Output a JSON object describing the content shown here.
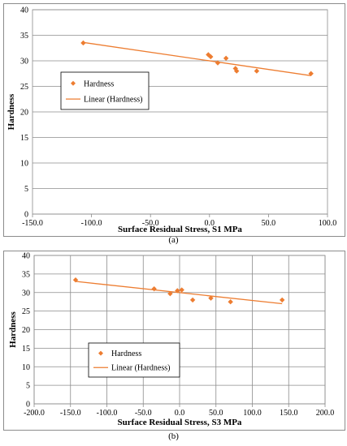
{
  "captions": {
    "a": "(a)",
    "b": "(b)"
  },
  "colors": {
    "series": "#ed7d31",
    "grid": "#8c8c8c",
    "axis": "#8c8c8c"
  },
  "chart_data": [
    {
      "type": "scatter",
      "xlabel": "Surface Residual Stress, S1 MPa",
      "ylabel": "Hardness",
      "xlim": [
        -150,
        100
      ],
      "ylim": [
        0,
        40
      ],
      "xticks": [
        -150,
        -100,
        -50,
        0,
        50,
        100
      ],
      "yticks": [
        0,
        5,
        10,
        15,
        20,
        25,
        30,
        35,
        40
      ],
      "xtick_labels": [
        "-150.0",
        "-100.0",
        "-50.0",
        "0.0",
        "50.0",
        "100.0"
      ],
      "ytick_labels": [
        "0",
        "5",
        "10",
        "15",
        "20",
        "25",
        "30",
        "35",
        "40"
      ],
      "grid": "horizontal",
      "legend_position": "left",
      "legend": [
        "Hardness",
        "Linear (Hardness)"
      ],
      "series": [
        {
          "name": "Hardness",
          "marker": "diamond",
          "x": [
            -107,
            -1,
            1,
            7,
            14,
            22,
            23,
            40,
            86
          ],
          "y": [
            33.5,
            31.2,
            30.8,
            29.6,
            30.5,
            28.5,
            28,
            28,
            27.5
          ]
        },
        {
          "name": "Linear (Hardness)",
          "kind": "trendline",
          "x": [
            -107,
            86
          ],
          "y": [
            33.6,
            27.1
          ]
        }
      ]
    },
    {
      "type": "scatter",
      "xlabel": "Surface Residual Stress, S3 MPa",
      "ylabel": "Hardness",
      "xlim": [
        -200,
        200
      ],
      "ylim": [
        0,
        40
      ],
      "xticks": [
        -200,
        -150,
        -100,
        -50,
        0,
        50,
        100,
        150,
        200
      ],
      "yticks": [
        0,
        5,
        10,
        15,
        20,
        25,
        30,
        35,
        40
      ],
      "xtick_labels": [
        "-200.0",
        "-150.0",
        "-100.0",
        "-50.0",
        "0.0",
        "50.0",
        "100.0",
        "150.0",
        "200.0"
      ],
      "ytick_labels": [
        "0",
        "5",
        "10",
        "15",
        "20",
        "25",
        "30",
        "35",
        "40"
      ],
      "grid": "both",
      "legend_position": "lower-left",
      "legend": [
        "Hardness",
        "Linear (Hardness)"
      ],
      "series": [
        {
          "name": "Hardness",
          "marker": "diamond",
          "x": [
            -143,
            -35,
            -13,
            -3,
            3,
            18,
            43,
            70,
            141
          ],
          "y": [
            33.4,
            31,
            29.7,
            30.5,
            30.7,
            28,
            28.5,
            27.5,
            28
          ]
        },
        {
          "name": "Linear (Hardness)",
          "kind": "trendline",
          "x": [
            -143,
            141
          ],
          "y": [
            33,
            27
          ]
        }
      ]
    }
  ]
}
